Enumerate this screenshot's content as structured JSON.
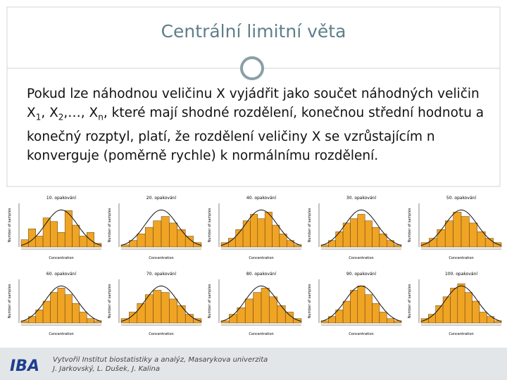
{
  "header": {
    "title": "Centrální limitní věta"
  },
  "body": {
    "segments": [
      "Pokud lze náhodnou veličinu X vyjádřit jako součet náhodných veličin X",
      "1",
      ", X",
      "2",
      ",…, X",
      "n",
      ", které mají shodné rozdělení, konečnou střední hodnotu a konečný rozptyl, platí, že rozdělení veličiny X se vzrůstajícím n konverguje (poměrně rychle) k normálnímu rozdělení."
    ]
  },
  "histograms": {
    "x_label": "Concentration",
    "y_label": "Number of samples",
    "color": "#f0a424",
    "panels": [
      {
        "title": "10. opakování",
        "counts": [
          2,
          5,
          3,
          8,
          7,
          4,
          10,
          6,
          3,
          4,
          1
        ],
        "ylim": [
          0,
          12
        ]
      },
      {
        "title": "20. opakování",
        "counts": [
          1,
          3,
          6,
          9,
          12,
          14,
          11,
          8,
          5,
          2
        ],
        "ylim": [
          0,
          20
        ]
      },
      {
        "title": "40. opakování",
        "counts": [
          2,
          4,
          8,
          12,
          15,
          13,
          16,
          10,
          6,
          3,
          1
        ],
        "ylim": [
          0,
          20
        ]
      },
      {
        "title": "30. opakování",
        "counts": [
          1,
          3,
          7,
          11,
          13,
          15,
          12,
          9,
          6,
          3,
          1
        ],
        "ylim": [
          0,
          20
        ]
      },
      {
        "title": "50. opakování",
        "counts": [
          2,
          4,
          8,
          12,
          16,
          14,
          11,
          7,
          4,
          2
        ],
        "ylim": [
          0,
          20
        ]
      },
      {
        "title": "60. opakování",
        "counts": [
          1,
          3,
          6,
          10,
          14,
          16,
          13,
          9,
          5,
          2,
          1
        ],
        "ylim": [
          0,
          20
        ]
      },
      {
        "title": "70. opakování",
        "counts": [
          2,
          5,
          9,
          13,
          15,
          14,
          11,
          8,
          4,
          2
        ],
        "ylim": [
          0,
          20
        ]
      },
      {
        "title": "80. opakování",
        "counts": [
          1,
          4,
          7,
          11,
          14,
          16,
          12,
          8,
          5,
          2
        ],
        "ylim": [
          0,
          20
        ]
      },
      {
        "title": "90. opakování",
        "counts": [
          1,
          3,
          6,
          10,
          15,
          17,
          13,
          9,
          5,
          2,
          1
        ],
        "ylim": [
          0,
          20
        ]
      },
      {
        "title": "100. opakování",
        "counts": [
          2,
          4,
          8,
          12,
          16,
          18,
          14,
          10,
          5,
          3,
          1
        ],
        "ylim": [
          0,
          20
        ]
      }
    ]
  },
  "footer": {
    "logo": "IBA",
    "line1": "Vytvořil Institut biostatistiky a analýz, Masarykova univerzita",
    "line2": "J. Jarkovský, L. Dušek, J. Kalina"
  }
}
